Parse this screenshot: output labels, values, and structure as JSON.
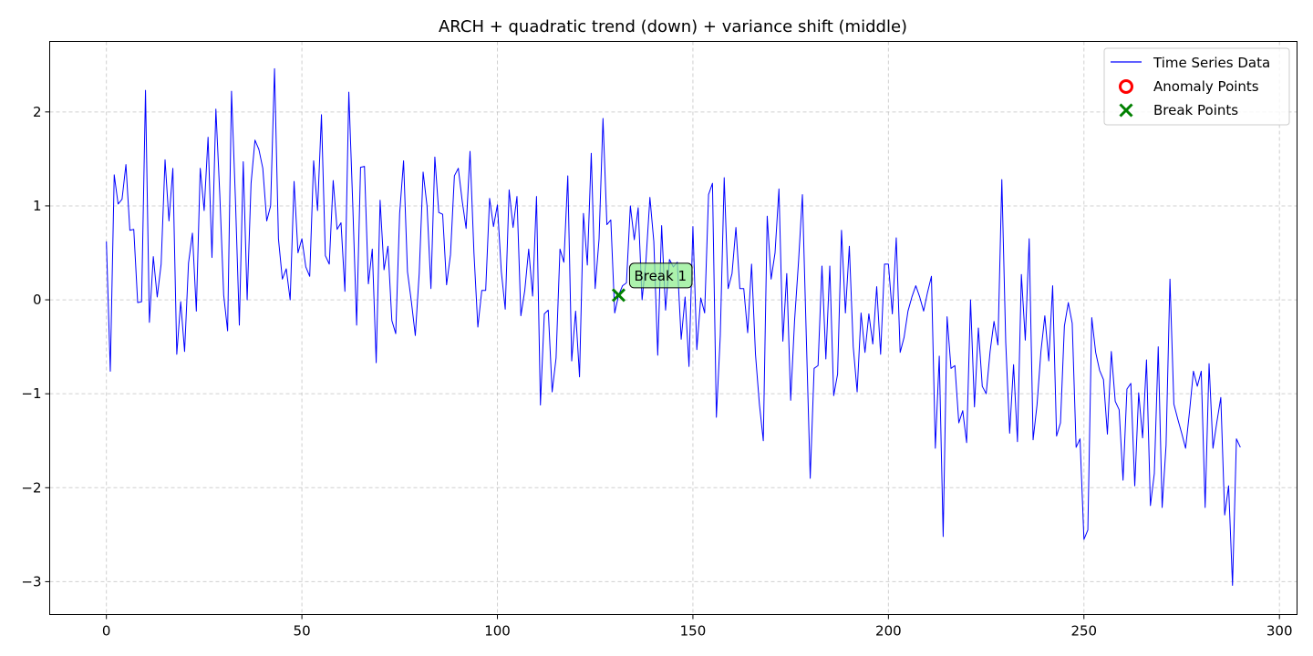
{
  "chart_data": {
    "type": "line",
    "title": "ARCH + quadratic trend (down) + variance shift (middle)",
    "xlabel": "",
    "ylabel": "",
    "xlim": [
      -14.5,
      304.5
    ],
    "ylim": [
      -3.35,
      2.75
    ],
    "xticks": [
      0,
      50,
      100,
      150,
      200,
      250,
      300
    ],
    "yticks": [
      -3,
      -2,
      -1,
      0,
      1,
      2
    ],
    "grid": true,
    "legend_position": "top-right",
    "series": [
      {
        "name": "Time Series Data",
        "color": "#0000ff",
        "x_start": 0,
        "values": [
          0.62,
          -0.76,
          1.33,
          1.02,
          1.07,
          1.44,
          0.74,
          0.75,
          -0.03,
          -0.02,
          2.23,
          -0.24,
          0.46,
          0.03,
          0.38,
          1.49,
          0.84,
          1.4,
          -0.58,
          -0.02,
          -0.55,
          0.39,
          0.71,
          -0.12,
          1.4,
          0.95,
          1.73,
          0.45,
          2.03,
          1.12,
          0.05,
          -0.33,
          2.22,
          1.07,
          -0.27,
          1.47,
          0.0,
          1.24,
          1.7,
          1.6,
          1.4,
          0.84,
          1.0,
          2.46,
          0.65,
          0.22,
          0.33,
          0.0,
          1.26,
          0.5,
          0.65,
          0.35,
          0.25,
          1.48,
          0.95,
          1.97,
          0.47,
          0.38,
          1.27,
          0.75,
          0.82,
          0.09,
          2.21,
          1.02,
          -0.27,
          1.41,
          1.42,
          0.17,
          0.54,
          -0.67,
          1.06,
          0.32,
          0.57,
          -0.22,
          -0.36,
          0.92,
          1.48,
          0.3,
          -0.02,
          -0.38,
          0.28,
          1.36,
          1.0,
          0.12,
          1.52,
          0.93,
          0.91,
          0.16,
          0.48,
          1.32,
          1.4,
          1.05,
          0.76,
          1.58,
          0.5,
          -0.29,
          0.1,
          0.1,
          1.08,
          0.78,
          1.01,
          0.3,
          -0.1,
          1.17,
          0.77,
          1.1,
          -0.17,
          0.1,
          0.54,
          0.04,
          1.1,
          -1.12,
          -0.15,
          -0.11,
          -0.98,
          -0.62,
          0.54,
          0.4,
          1.32,
          -0.65,
          -0.12,
          -0.82,
          0.92,
          0.37,
          1.56,
          0.12,
          0.65,
          1.93,
          0.8,
          0.85,
          -0.14,
          0.05,
          0.15,
          0.18,
          1.0,
          0.64,
          0.98,
          0.0,
          0.42,
          1.09,
          0.62,
          -0.59,
          0.79,
          -0.11,
          0.43,
          0.35,
          0.4,
          -0.42,
          0.03,
          -0.71,
          0.78,
          -0.53,
          0.02,
          -0.14,
          1.12,
          1.24,
          -1.25,
          -0.38,
          1.3,
          0.12,
          0.28,
          0.77,
          0.12,
          0.12,
          -0.35,
          0.38,
          -0.58,
          -1.11,
          -1.5,
          0.89,
          0.22,
          0.5,
          1.18,
          -0.44,
          0.28,
          -1.07,
          -0.22,
          0.4,
          1.12,
          -0.4,
          -1.9,
          -0.73,
          -0.7,
          0.36,
          -0.63,
          0.36,
          -1.02,
          -0.79,
          0.74,
          -0.14,
          0.57,
          -0.5,
          -0.98,
          -0.14,
          -0.56,
          -0.15,
          -0.47,
          0.14,
          -0.58,
          0.38,
          0.38,
          -0.15,
          0.66,
          -0.56,
          -0.4,
          -0.12,
          0.03,
          0.15,
          0.03,
          -0.12,
          0.08,
          0.25,
          -1.58,
          -0.6,
          -2.52,
          -0.18,
          -0.73,
          -0.7,
          -1.31,
          -1.18,
          -1.52,
          0.0,
          -1.14,
          -0.3,
          -0.92,
          -1.0,
          -0.55,
          -0.23,
          -0.48,
          1.28,
          -0.45,
          -1.42,
          -0.69,
          -1.51,
          0.27,
          -0.43,
          0.65,
          -1.49,
          -1.12,
          -0.55,
          -0.17,
          -0.65,
          0.15,
          -1.45,
          -1.31,
          -0.28,
          -0.03,
          -0.25,
          -1.57,
          -1.48,
          -2.55,
          -2.45,
          -0.19,
          -0.56,
          -0.75,
          -0.85,
          -1.43,
          -0.55,
          -1.08,
          -1.17,
          -1.92,
          -0.95,
          -0.89,
          -1.98,
          -0.99,
          -1.47,
          -0.64,
          -2.19,
          -1.85,
          -0.5,
          -2.21,
          -1.55,
          0.22,
          -1.11,
          -1.27,
          -1.42,
          -1.58,
          -1.19,
          -0.76,
          -0.92,
          -0.76,
          -2.21,
          -0.68,
          -1.58,
          -1.3,
          -1.04,
          -2.29,
          -1.98,
          -3.04,
          -1.48,
          -1.57
        ]
      }
    ],
    "anomaly_points": {
      "name": "Anomaly Points",
      "color": "#ff0000",
      "points": []
    },
    "break_points": {
      "name": "Break Points",
      "color": "#008000",
      "points": [
        {
          "x": 131,
          "y": 0.05,
          "label": "Break 1"
        }
      ]
    }
  }
}
